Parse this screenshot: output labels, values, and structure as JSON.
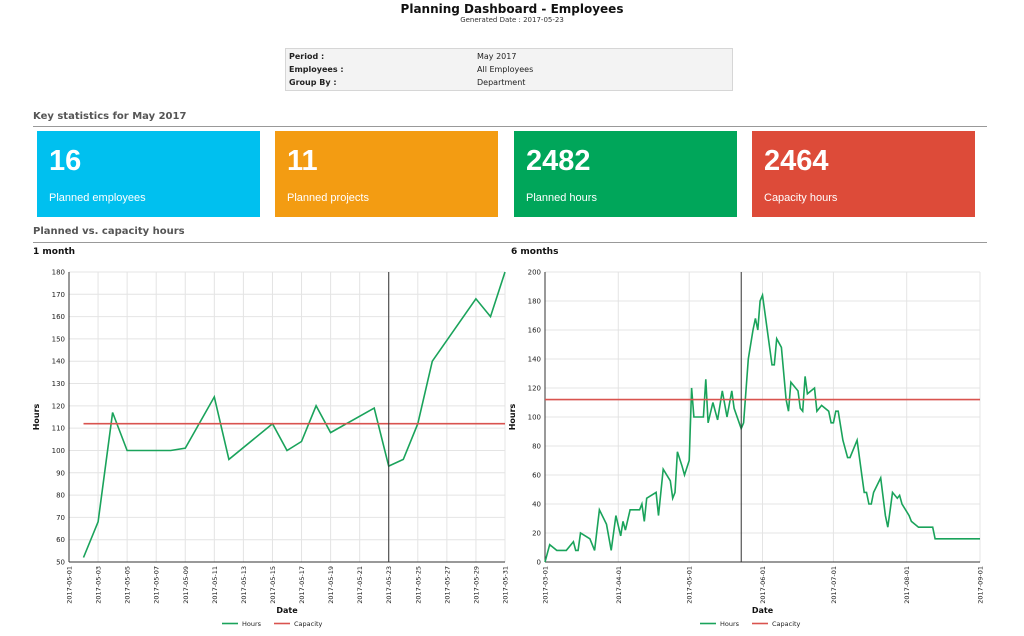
{
  "header": {
    "title": "Planning Dashboard - Employees",
    "generated": "Generated Date : 2017-05-23"
  },
  "params": [
    {
      "key": "Period :",
      "value": "May 2017"
    },
    {
      "key": "Employees :",
      "value": "All Employees"
    },
    {
      "key": "Group By :",
      "value": "Department"
    }
  ],
  "sections": {
    "stats": "Key statistics for May 2017",
    "chart": "Planned vs. capacity hours"
  },
  "cards": [
    {
      "value": "16",
      "label": "Planned employees",
      "color": "#00c0ef"
    },
    {
      "value": "11",
      "label": "Planned projects",
      "color": "#f39c12"
    },
    {
      "value": "2482",
      "label": "Planned hours",
      "color": "#00a65a"
    },
    {
      "value": "2464",
      "label": "Capacity hours",
      "color": "#dd4b39"
    }
  ],
  "colors": {
    "hours": "#1aa35b",
    "capacity": "#d9534f"
  },
  "chart_data": [
    {
      "type": "line",
      "panel_title": "1 month",
      "xlabel": "Date",
      "ylabel": "Hours",
      "ylim": [
        50,
        180
      ],
      "yticks": [
        50,
        60,
        70,
        80,
        90,
        100,
        110,
        120,
        130,
        140,
        150,
        160,
        170,
        180
      ],
      "xlim": [
        "2017-05-01",
        "2017-05-31"
      ],
      "xticks": [
        "2017-05-01",
        "2017-05-03",
        "2017-05-05",
        "2017-05-07",
        "2017-05-09",
        "2017-05-11",
        "2017-05-13",
        "2017-05-15",
        "2017-05-17",
        "2017-05-19",
        "2017-05-21",
        "2017-05-23",
        "2017-05-25",
        "2017-05-27",
        "2017-05-29",
        "2017-05-31"
      ],
      "marker_date": "2017-05-23",
      "series": [
        {
          "name": "Hours",
          "points": [
            [
              "2017-05-02",
              52
            ],
            [
              "2017-05-03",
              68
            ],
            [
              "2017-05-04",
              117
            ],
            [
              "2017-05-05",
              100
            ],
            [
              "2017-05-08",
              100
            ],
            [
              "2017-05-09",
              101
            ],
            [
              "2017-05-11",
              124
            ],
            [
              "2017-05-12",
              96
            ],
            [
              "2017-05-15",
              112
            ],
            [
              "2017-05-16",
              100
            ],
            [
              "2017-05-17",
              104
            ],
            [
              "2017-05-18",
              120
            ],
            [
              "2017-05-19",
              108
            ],
            [
              "2017-05-22",
              119
            ],
            [
              "2017-05-23",
              93
            ],
            [
              "2017-05-24",
              96
            ],
            [
              "2017-05-25",
              112
            ],
            [
              "2017-05-26",
              140
            ],
            [
              "2017-05-29",
              168
            ],
            [
              "2017-05-30",
              160
            ],
            [
              "2017-05-31",
              180
            ]
          ]
        },
        {
          "name": "Capacity",
          "points": [
            [
              "2017-05-02",
              112
            ],
            [
              "2017-05-31",
              112
            ]
          ]
        }
      ],
      "legend": [
        "Hours",
        "Capacity"
      ]
    },
    {
      "type": "line",
      "panel_title": "6 months",
      "xlabel": "Date",
      "ylabel": "Hours",
      "ylim": [
        0,
        200
      ],
      "yticks": [
        0,
        20,
        40,
        60,
        80,
        100,
        120,
        140,
        160,
        180,
        200
      ],
      "xlim": [
        "2017-03-01",
        "2017-09-01"
      ],
      "xticks": [
        "2017-03-01",
        "2017-04-01",
        "2017-05-01",
        "2017-06-01",
        "2017-07-01",
        "2017-08-01",
        "2017-09-01"
      ],
      "marker_date": "2017-05-23",
      "series": [
        {
          "name": "Hours",
          "points": [
            [
              "2017-03-01",
              0
            ],
            [
              "2017-03-03",
              12
            ],
            [
              "2017-03-06",
              8
            ],
            [
              "2017-03-10",
              8
            ],
            [
              "2017-03-13",
              14
            ],
            [
              "2017-03-14",
              8
            ],
            [
              "2017-03-15",
              8
            ],
            [
              "2017-03-16",
              20
            ],
            [
              "2017-03-20",
              16
            ],
            [
              "2017-03-22",
              8
            ],
            [
              "2017-03-24",
              36
            ],
            [
              "2017-03-27",
              26
            ],
            [
              "2017-03-29",
              8
            ],
            [
              "2017-03-31",
              32
            ],
            [
              "2017-04-02",
              18
            ],
            [
              "2017-04-03",
              28
            ],
            [
              "2017-04-04",
              22
            ],
            [
              "2017-04-06",
              36
            ],
            [
              "2017-04-10",
              36
            ],
            [
              "2017-04-11",
              40
            ],
            [
              "2017-04-12",
              28
            ],
            [
              "2017-04-13",
              44
            ],
            [
              "2017-04-17",
              48
            ],
            [
              "2017-04-18",
              32
            ],
            [
              "2017-04-20",
              64
            ],
            [
              "2017-04-23",
              56
            ],
            [
              "2017-04-24",
              44
            ],
            [
              "2017-04-25",
              48
            ],
            [
              "2017-04-26",
              76
            ],
            [
              "2017-04-28",
              66
            ],
            [
              "2017-04-29",
              60
            ],
            [
              "2017-05-01",
              70
            ],
            [
              "2017-05-02",
              120
            ],
            [
              "2017-05-03",
              100
            ],
            [
              "2017-05-06",
              100
            ],
            [
              "2017-05-07",
              100
            ],
            [
              "2017-05-08",
              126
            ],
            [
              "2017-05-09",
              96
            ],
            [
              "2017-05-11",
              110
            ],
            [
              "2017-05-13",
              98
            ],
            [
              "2017-05-15",
              118
            ],
            [
              "2017-05-17",
              100
            ],
            [
              "2017-05-19",
              118
            ],
            [
              "2017-05-20",
              106
            ],
            [
              "2017-05-23",
              92
            ],
            [
              "2017-05-24",
              96
            ],
            [
              "2017-05-26",
              140
            ],
            [
              "2017-05-28",
              160
            ],
            [
              "2017-05-29",
              168
            ],
            [
              "2017-05-30",
              160
            ],
            [
              "2017-05-31",
              180
            ],
            [
              "2017-06-01",
              184
            ],
            [
              "2017-06-02",
              172
            ],
            [
              "2017-06-05",
              136
            ],
            [
              "2017-06-06",
              136
            ],
            [
              "2017-06-07",
              154
            ],
            [
              "2017-06-09",
              148
            ],
            [
              "2017-06-11",
              112
            ],
            [
              "2017-06-12",
              104
            ],
            [
              "2017-06-13",
              124
            ],
            [
              "2017-06-16",
              118
            ],
            [
              "2017-06-17",
              106
            ],
            [
              "2017-06-18",
              104
            ],
            [
              "2017-06-19",
              128
            ],
            [
              "2017-06-20",
              116
            ],
            [
              "2017-06-23",
              120
            ],
            [
              "2017-06-24",
              104
            ],
            [
              "2017-06-26",
              108
            ],
            [
              "2017-06-29",
              104
            ],
            [
              "2017-06-30",
              96
            ],
            [
              "2017-07-01",
              96
            ],
            [
              "2017-07-02",
              104
            ],
            [
              "2017-07-03",
              104
            ],
            [
              "2017-07-05",
              84
            ],
            [
              "2017-07-07",
              72
            ],
            [
              "2017-07-08",
              72
            ],
            [
              "2017-07-11",
              84
            ],
            [
              "2017-07-13",
              60
            ],
            [
              "2017-07-14",
              48
            ],
            [
              "2017-07-15",
              48
            ],
            [
              "2017-07-16",
              40
            ],
            [
              "2017-07-17",
              40
            ],
            [
              "2017-07-18",
              48
            ],
            [
              "2017-07-21",
              58
            ],
            [
              "2017-07-23",
              32
            ],
            [
              "2017-07-24",
              24
            ],
            [
              "2017-07-25",
              36
            ],
            [
              "2017-07-26",
              48
            ],
            [
              "2017-07-28",
              44
            ],
            [
              "2017-07-29",
              46
            ],
            [
              "2017-07-30",
              40
            ],
            [
              "2017-08-02",
              32
            ],
            [
              "2017-08-03",
              28
            ],
            [
              "2017-08-06",
              24
            ],
            [
              "2017-08-08",
              24
            ],
            [
              "2017-08-12",
              24
            ],
            [
              "2017-08-13",
              16
            ],
            [
              "2017-09-01",
              16
            ]
          ]
        },
        {
          "name": "Capacity",
          "points": [
            [
              "2017-03-01",
              112
            ],
            [
              "2017-09-01",
              112
            ]
          ]
        }
      ],
      "legend": [
        "Hours",
        "Capacity"
      ]
    }
  ]
}
